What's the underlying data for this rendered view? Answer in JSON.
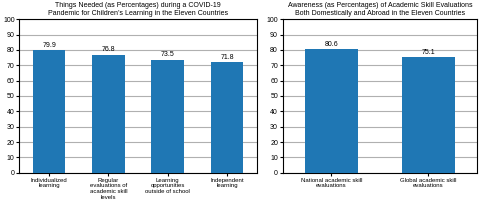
{
  "chart_data": [
    {
      "type": "bar",
      "title": "Things Needed (as Percentages) during a COVID-19\nPandemic for Children’s Learning in the Eleven Countries",
      "categories": [
        "Individualized\nlearning",
        "Regular\nevaluations of\nacademic skill\nlevels",
        "Learning\nopportunities\noutside of school",
        "Independent\nlearning"
      ],
      "values": [
        79.9,
        76.8,
        73.5,
        71.8
      ],
      "ylim": [
        0,
        100
      ],
      "yticks": [
        0,
        10,
        20,
        30,
        40,
        50,
        60,
        70,
        80,
        90,
        100
      ],
      "grid": true,
      "data_labels": true
    },
    {
      "type": "bar",
      "title": "Awareness (as Percentages) of Academic Skill Evaluations\nBoth Domestically and Abroad in the Eleven Countries",
      "categories": [
        "National academic skill\nevaluations",
        "Global academic skill\nevaluations"
      ],
      "values": [
        80.6,
        75.1
      ],
      "ylim": [
        0,
        100
      ],
      "yticks": [
        0,
        10,
        20,
        30,
        40,
        50,
        60,
        70,
        80,
        90,
        100
      ],
      "grid": true,
      "data_labels": true
    }
  ]
}
